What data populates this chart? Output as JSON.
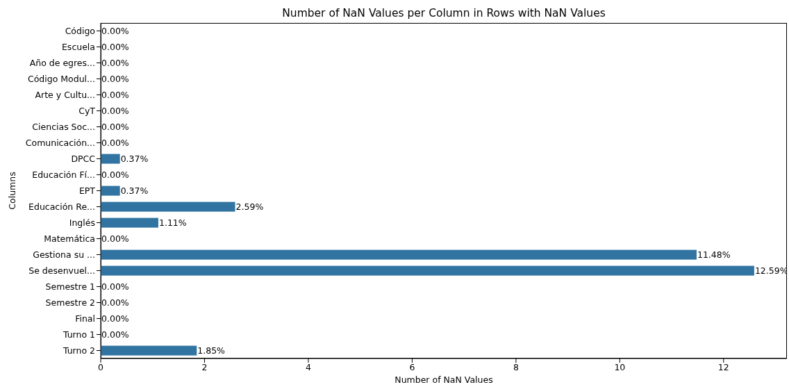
{
  "chart_data": {
    "type": "bar",
    "orientation": "horizontal",
    "title": "Number of NaN Values per Column in Rows with NaN Values",
    "xlabel": "Number of NaN Values",
    "ylabel": "Columns",
    "categories": [
      "Código",
      "Escuela",
      "Año de egres...",
      "Código Modul...",
      "Arte y Cultu...",
      "CyT",
      "Ciencias Soc...",
      "Comunicación...",
      "DPCC",
      "Educación Fí...",
      "EPT",
      "Educación Re...",
      "Inglés",
      "Matemática",
      "Gestiona su ...",
      "Se desenvuel...",
      "Semestre 1",
      "Semestre 2",
      "Final",
      "Turno 1",
      "Turno 2"
    ],
    "values": [
      0,
      0,
      0,
      0,
      0,
      0,
      0,
      0,
      0.37,
      0,
      0.37,
      2.59,
      1.11,
      0,
      11.48,
      12.59,
      0,
      0,
      0,
      0,
      1.85
    ],
    "value_labels": [
      "0.00%",
      "0.00%",
      "0.00%",
      "0.00%",
      "0.00%",
      "0.00%",
      "0.00%",
      "0.00%",
      "0.37%",
      "0.00%",
      "0.37%",
      "2.59%",
      "1.11%",
      "0.00%",
      "11.48%",
      "12.59%",
      "0.00%",
      "0.00%",
      "0.00%",
      "0.00%",
      "1.85%"
    ],
    "color": "#3274a1",
    "xlim": [
      0,
      13.22
    ],
    "xticks": [
      0,
      2,
      4,
      6,
      8,
      10,
      12
    ],
    "grid": false
  }
}
